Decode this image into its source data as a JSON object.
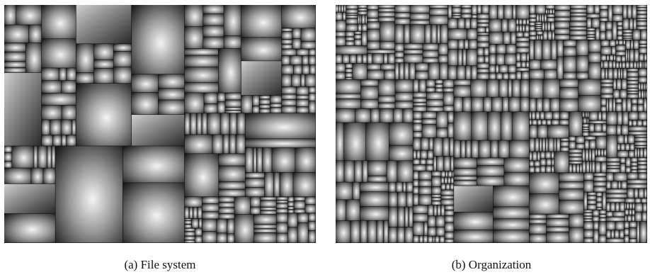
{
  "figure": {
    "panels": [
      {
        "id": "a",
        "caption": "(a) File system"
      },
      {
        "id": "b",
        "caption": "(b) Organization"
      }
    ]
  },
  "colors": {
    "background": "#ffffff",
    "cell_highlight": "#f4f4f4",
    "cell_shadow": "#1a1a1a",
    "border": "#0a0a0a"
  }
}
